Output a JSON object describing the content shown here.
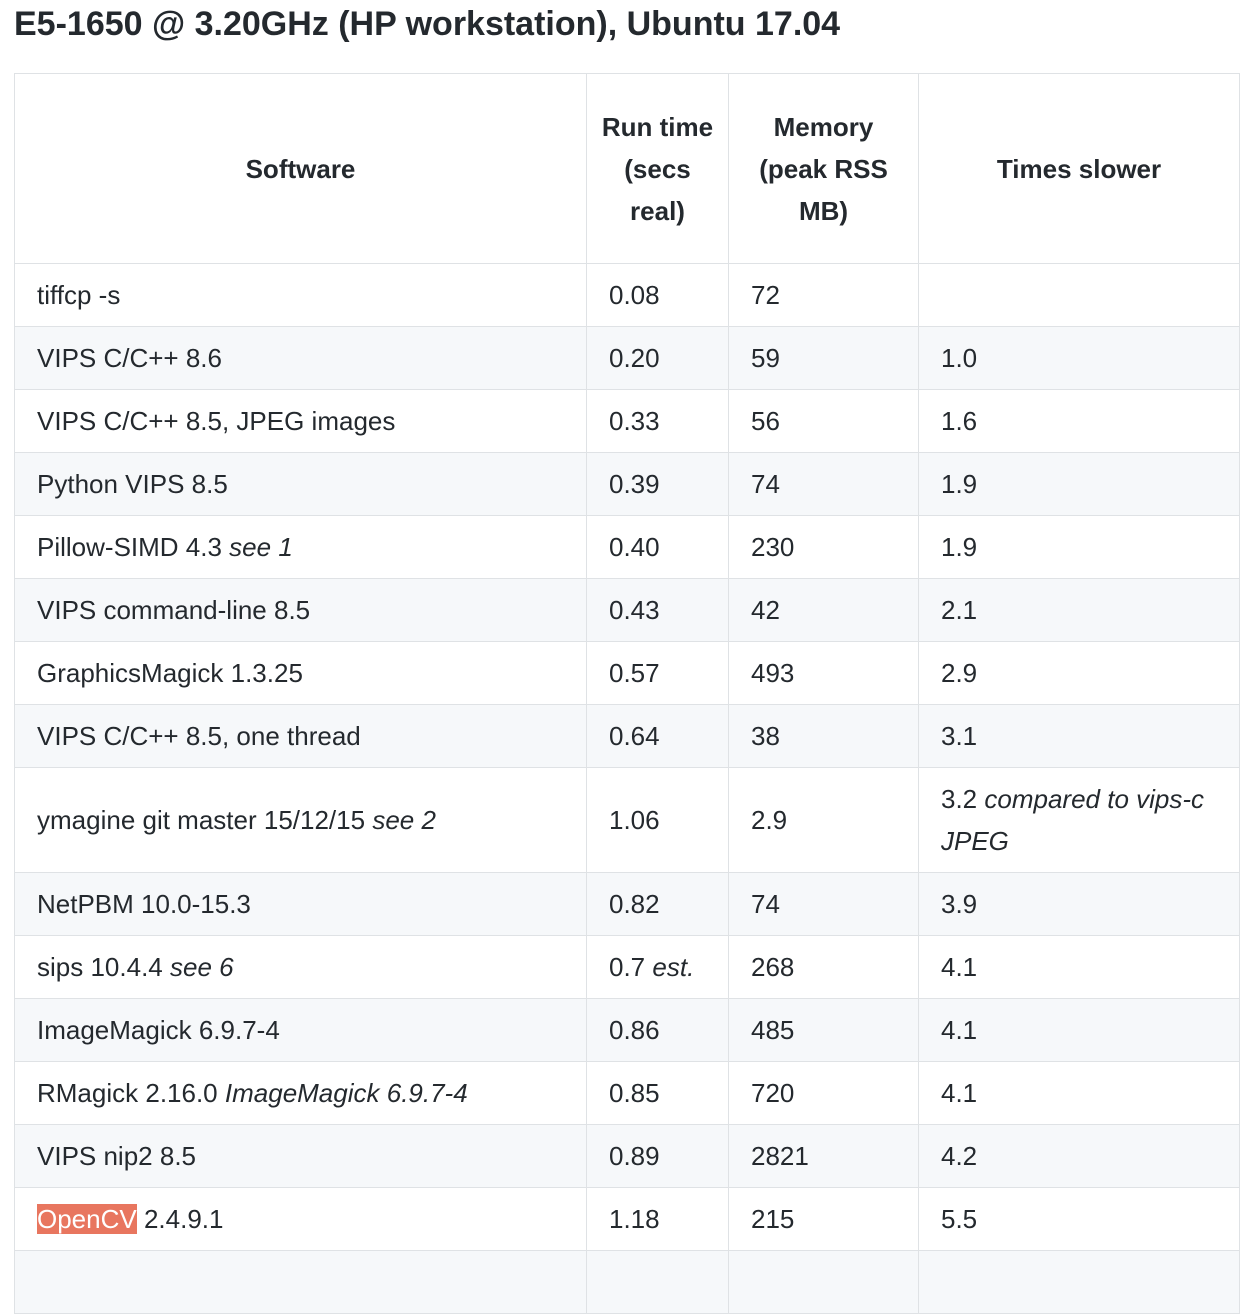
{
  "title": "E5-1650 @ 3.20GHz (HP workstation), Ubuntu 17.04",
  "columns": {
    "software": "Software",
    "run_time": "Run time (secs real)",
    "memory": "Memory (peak RSS MB)",
    "times_slower": "Times slower"
  },
  "rows": [
    {
      "name": "tiffcp -s",
      "note": "",
      "time": "0.08",
      "time_note": "",
      "mem": "72",
      "slower": "",
      "slower_note": ""
    },
    {
      "name": "VIPS C/C++ 8.6",
      "note": "",
      "time": "0.20",
      "time_note": "",
      "mem": "59",
      "slower": "1.0",
      "slower_note": ""
    },
    {
      "name": "VIPS C/C++ 8.5, JPEG images",
      "note": "",
      "time": "0.33",
      "time_note": "",
      "mem": "56",
      "slower": "1.6",
      "slower_note": ""
    },
    {
      "name": "Python VIPS 8.5",
      "note": "",
      "time": "0.39",
      "time_note": "",
      "mem": "74",
      "slower": "1.9",
      "slower_note": ""
    },
    {
      "name": "Pillow-SIMD 4.3",
      "note": "see 1",
      "time": "0.40",
      "time_note": "",
      "mem": "230",
      "slower": "1.9",
      "slower_note": ""
    },
    {
      "name": "VIPS command-line 8.5",
      "note": "",
      "time": "0.43",
      "time_note": "",
      "mem": "42",
      "slower": "2.1",
      "slower_note": ""
    },
    {
      "name": "GraphicsMagick 1.3.25",
      "note": "",
      "time": "0.57",
      "time_note": "",
      "mem": "493",
      "slower": "2.9",
      "slower_note": ""
    },
    {
      "name": "VIPS C/C++ 8.5, one thread",
      "note": "",
      "time": "0.64",
      "time_note": "",
      "mem": "38",
      "slower": "3.1",
      "slower_note": ""
    },
    {
      "name": "ymagine git master 15/12/15",
      "note": "see 2",
      "time": "1.06",
      "time_note": "",
      "mem": "2.9",
      "slower": "3.2",
      "slower_note": "compared to vips-c JPEG"
    },
    {
      "name": "NetPBM 10.0-15.3",
      "note": "",
      "time": "0.82",
      "time_note": "",
      "mem": "74",
      "slower": "3.9",
      "slower_note": ""
    },
    {
      "name": "sips 10.4.4",
      "note": "see 6",
      "time": "0.7",
      "time_note": "est.",
      "mem": "268",
      "slower": "4.1",
      "slower_note": ""
    },
    {
      "name": "ImageMagick 6.9.7-4",
      "note": "",
      "time": "0.86",
      "time_note": "",
      "mem": "485",
      "slower": "4.1",
      "slower_note": ""
    },
    {
      "name": "RMagick 2.16.0",
      "note": "ImageMagick 6.9.7-4",
      "time": "0.85",
      "time_note": "",
      "mem": "720",
      "slower": "4.1",
      "slower_note": ""
    },
    {
      "name": "VIPS nip2 8.5",
      "note": "",
      "time": "0.89",
      "time_note": "",
      "mem": "2821",
      "slower": "4.2",
      "slower_note": ""
    }
  ],
  "opencv_row": {
    "highlight": "OpenCV",
    "version": "2.4.9.1",
    "time": "1.18",
    "mem": "215",
    "slower": "5.5",
    "highlight_color": "#e8765f"
  },
  "colors": {
    "text": "#24292e",
    "border": "#dfe2e5",
    "stripe": "#f6f8fa"
  }
}
